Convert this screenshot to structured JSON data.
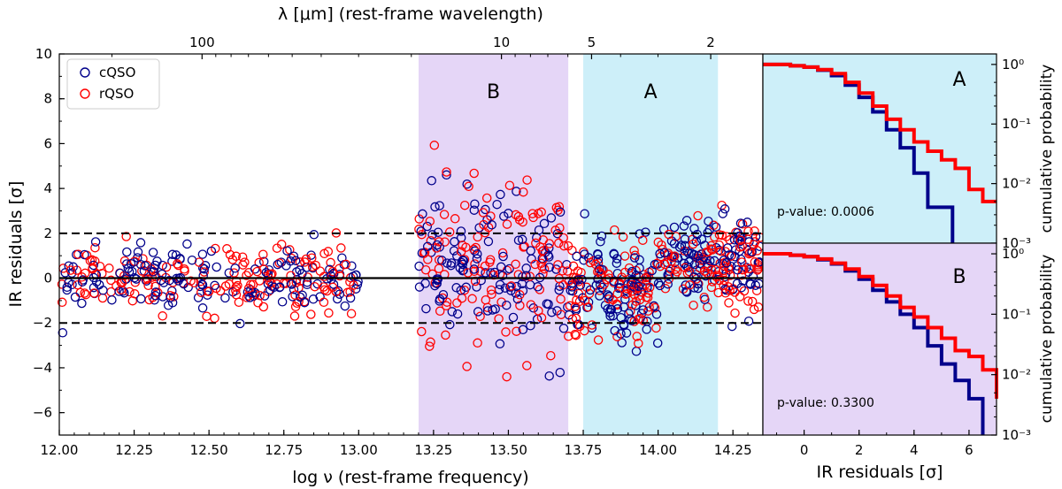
{
  "chart_data": [
    {
      "type": "scatter",
      "name": "main",
      "xlabel": "log ν (rest-frame frequency)",
      "ylabel": "IR residuals [σ]",
      "top_xlabel": "λ [μm] (rest-frame wavelength)",
      "xlim": [
        12.0,
        14.35
      ],
      "ylim": [
        -7,
        10
      ],
      "xticks": [
        12.0,
        12.25,
        12.5,
        12.75,
        13.0,
        13.25,
        13.5,
        13.75,
        14.0,
        14.25
      ],
      "xtick_labels": [
        "12.00",
        "12.25",
        "12.50",
        "12.75",
        "13.00",
        "13.25",
        "13.50",
        "13.75",
        "14.00",
        "14.25"
      ],
      "yticks": [
        -6,
        -4,
        -2,
        0,
        2,
        4,
        6,
        8,
        10
      ],
      "ytick_labels": [
        "−6",
        "−4",
        "−2",
        "0",
        "2",
        "4",
        "6",
        "8",
        "10"
      ],
      "top_ticks_um": [
        100,
        10,
        5,
        2
      ],
      "top_tick_labels": [
        "100",
        "10",
        "5",
        "2"
      ],
      "hlines": [
        {
          "y": 0,
          "style": "solid"
        },
        {
          "y": 2,
          "style": "dashed"
        },
        {
          "y": -2,
          "style": "dashed"
        }
      ],
      "regions": [
        {
          "label": "B",
          "x0": 13.2,
          "x1": 13.7,
          "color": "#e5d6f7"
        },
        {
          "label": "A",
          "x0": 13.75,
          "x1": 14.2,
          "color": "#cdeff9"
        }
      ],
      "legend": {
        "position": "top-left",
        "entries": [
          "cQSO",
          "rQSO"
        ]
      },
      "series": [
        {
          "name": "cQSO",
          "color": "#00008b",
          "marker": "open-circle"
        },
        {
          "name": "rQSO",
          "color": "#ff0000",
          "marker": "open-circle"
        }
      ],
      "point_clusters": [
        {
          "x_range": [
            12.0,
            13.0
          ],
          "y_center": 0.0,
          "y_spread": 0.7,
          "n": 340
        },
        {
          "x_range": [
            13.2,
            13.7
          ],
          "y_center": 0.4,
          "y_spread": 1.8,
          "n": 260
        },
        {
          "x_range": [
            13.7,
            14.0
          ],
          "y_center": -0.6,
          "y_spread": 1.1,
          "n": 200
        },
        {
          "x_range": [
            14.0,
            14.35
          ],
          "y_center": 0.7,
          "y_spread": 1.0,
          "n": 240
        }
      ]
    },
    {
      "type": "line",
      "name": "panel-A",
      "region_label": "A",
      "annotation": "p-value: 0.0006",
      "xlim": [
        -1.5,
        7
      ],
      "ylog_range": [
        0.001,
        1.5
      ],
      "yticks": [
        1,
        0.1,
        0.01,
        0.001
      ],
      "ytick_labels": [
        "10⁰",
        "10⁻¹",
        "10⁻²",
        "10⁻³"
      ],
      "ylabel": "cumulative probability",
      "bg_color": "#cdeff9",
      "series": [
        {
          "name": "cQSO",
          "color": "#00008b",
          "x": [
            -1.5,
            -0.5,
            0,
            0.5,
            1,
            1.5,
            2,
            2.5,
            3,
            3.5,
            4,
            4.5,
            5.4
          ],
          "y": [
            1.0,
            0.95,
            0.9,
            0.8,
            0.65,
            0.45,
            0.28,
            0.16,
            0.08,
            0.04,
            0.015,
            0.004,
            0.001
          ]
        },
        {
          "name": "rQSO",
          "color": "#ff0000",
          "x": [
            -1.5,
            -0.5,
            0,
            0.5,
            1,
            1.5,
            2,
            2.5,
            3,
            3.5,
            4,
            4.5,
            5,
            5.5,
            6,
            6.5,
            7
          ],
          "y": [
            1.0,
            0.95,
            0.9,
            0.82,
            0.7,
            0.5,
            0.33,
            0.2,
            0.12,
            0.08,
            0.05,
            0.035,
            0.025,
            0.018,
            0.008,
            0.005,
            0.005
          ]
        }
      ]
    },
    {
      "type": "line",
      "name": "panel-B",
      "region_label": "B",
      "annotation": "p-value: 0.3300",
      "xlim": [
        -1.5,
        7
      ],
      "xticks": [
        0,
        2,
        4,
        6
      ],
      "xtick_labels": [
        "0",
        "2",
        "4",
        "6"
      ],
      "xlabel": "IR residuals [σ]",
      "ylog_range": [
        0.001,
        1.5
      ],
      "yticks": [
        1,
        0.1,
        0.01,
        0.001
      ],
      "ytick_labels": [
        "10⁰",
        "10⁻¹",
        "10⁻²",
        "10⁻³"
      ],
      "ylabel": "cumulative probability",
      "bg_color": "#e5d6f7",
      "series": [
        {
          "name": "cQSO",
          "color": "#00008b",
          "x": [
            -1.5,
            -0.5,
            0,
            0.5,
            1,
            1.5,
            2,
            2.5,
            3,
            3.5,
            4,
            4.5,
            5,
            5.5,
            6,
            6.5
          ],
          "y": [
            1.0,
            0.95,
            0.9,
            0.8,
            0.68,
            0.52,
            0.38,
            0.25,
            0.16,
            0.1,
            0.06,
            0.03,
            0.015,
            0.008,
            0.004,
            0.001
          ]
        },
        {
          "name": "rQSO",
          "color": "#ff0000",
          "x": [
            -1.5,
            -0.5,
            0,
            0.5,
            1,
            1.5,
            2,
            2.5,
            3,
            3.5,
            4,
            4.5,
            5,
            5.5,
            6,
            6.5,
            7
          ],
          "y": [
            1.0,
            0.95,
            0.9,
            0.82,
            0.7,
            0.56,
            0.42,
            0.3,
            0.2,
            0.13,
            0.09,
            0.06,
            0.04,
            0.025,
            0.02,
            0.012,
            0.004
          ]
        }
      ]
    }
  ]
}
